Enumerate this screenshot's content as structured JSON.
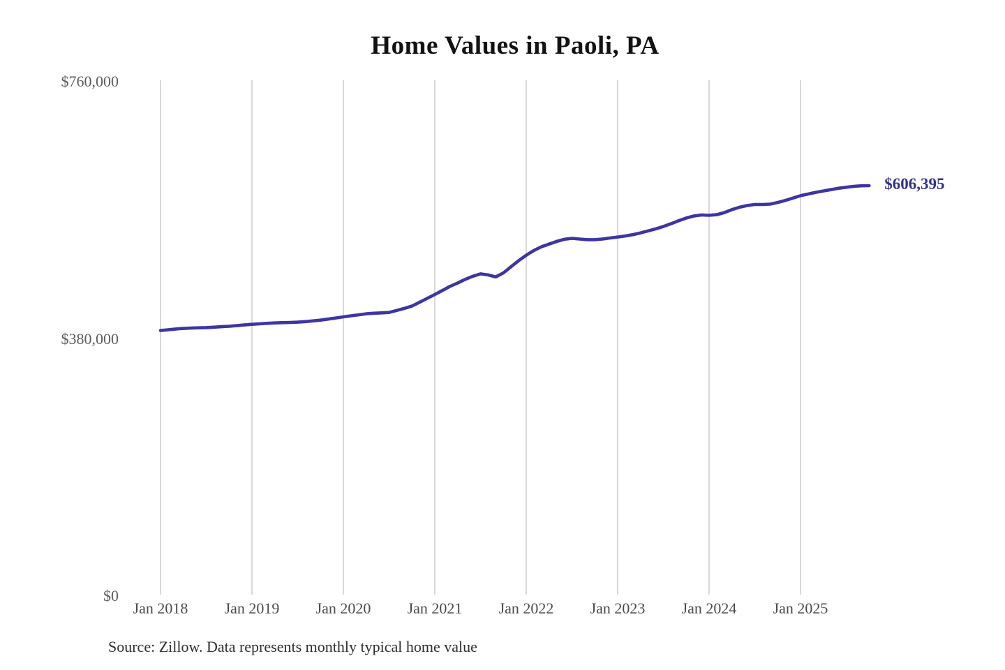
{
  "title": "Home Values in Paoli, PA",
  "source_note": "Source: Zillow. Data represents monthly typical home value",
  "end_label": "$606,395",
  "colors": {
    "line": "#3d35a3",
    "end_label_text": "#32318e",
    "gridline": "#cccccc",
    "x_tick_text": "#4a4a4a",
    "y_tick_text": "#5c5c5c",
    "title_text": "#121212",
    "source_text": "#2f2f2f"
  },
  "chart_data": {
    "type": "line",
    "title": "Home Values in Paoli, PA",
    "xlabel": "",
    "ylabel": "",
    "ylim": [
      0,
      760000
    ],
    "grid": "vertical-only",
    "legend": "none",
    "x_start_month": "2018-01",
    "x_end_month": "2025-10",
    "x_tick_labels": [
      "Jan 2018",
      "Jan 2019",
      "Jan 2020",
      "Jan 2021",
      "Jan 2022",
      "Jan 2023",
      "Jan 2024",
      "Jan 2025"
    ],
    "y_tick_labels": [
      "$0",
      "$380,000",
      "$760,000"
    ],
    "y_tick_values": [
      0,
      380000,
      760000
    ],
    "last_value": 606395,
    "last_value_label": "$606,395",
    "series": [
      {
        "label": "Monthly typical home value",
        "cadence": "monthly",
        "values": [
          392300,
          393400,
          394500,
          395400,
          395900,
          396300,
          396600,
          397200,
          397900,
          398600,
          399500,
          400500,
          401500,
          402200,
          402900,
          403500,
          403900,
          404200,
          404600,
          405500,
          406500,
          407600,
          409200,
          410800,
          412500,
          414000,
          415500,
          417000,
          417800,
          418400,
          419000,
          422000,
          425000,
          428500,
          434000,
          439800,
          445500,
          451500,
          457500,
          462500,
          468000,
          472500,
          476000,
          474500,
          471500,
          477500,
          486500,
          495500,
          503500,
          510500,
          516000,
          520000,
          524000,
          527000,
          528500,
          527500,
          526500,
          526500,
          527500,
          529000,
          530500,
          532000,
          534000,
          536500,
          539500,
          542500,
          546000,
          550000,
          554500,
          558500,
          561500,
          563000,
          562500,
          563500,
          566500,
          571000,
          574500,
          577000,
          578500,
          578500,
          579000,
          581500,
          584500,
          588000,
          591500,
          594000,
          596500,
          598500,
          600500,
          602500,
          604000,
          605300,
          606100,
          606395
        ]
      }
    ]
  }
}
